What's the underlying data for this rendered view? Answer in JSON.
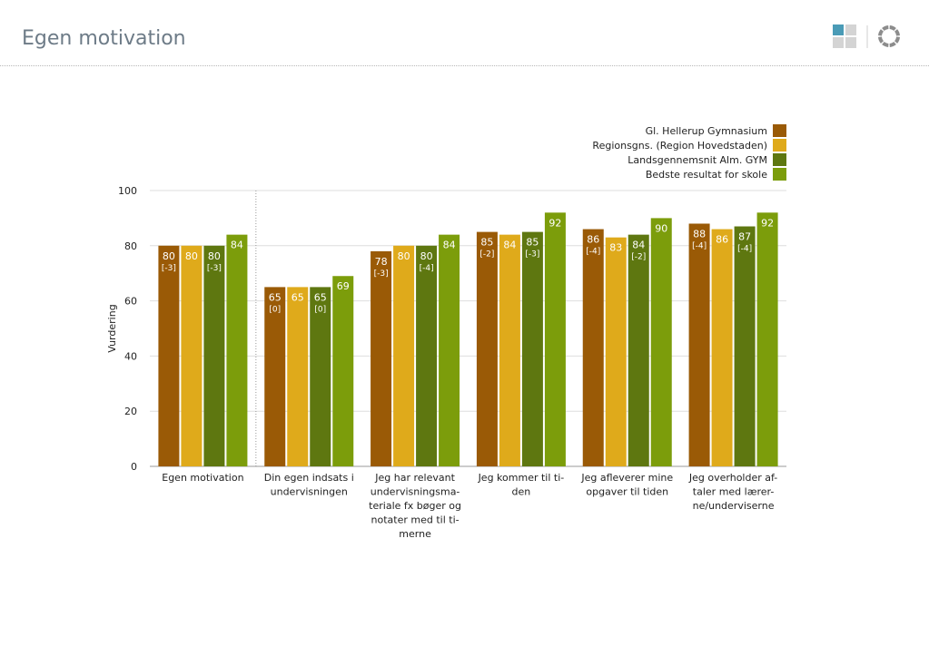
{
  "header": {
    "title": "Egen motivation"
  },
  "logo": {
    "icon_left": "grid-squares-icon",
    "icon_right": "ring-segments-icon",
    "colors": {
      "square_accent": "#4a9bb6",
      "square_grey": "#d4d4d4",
      "ring": "#8c8c8c"
    }
  },
  "chart_data": {
    "type": "bar",
    "ylabel": "Vurdering",
    "ylim": [
      0,
      100
    ],
    "yticks": [
      0,
      20,
      40,
      60,
      80,
      100
    ],
    "grid": true,
    "legend_position": "top-right",
    "categories": [
      "Egen motivation",
      "Din egen indsats i undervisningen",
      "Jeg har relevant undervisningsmateriale fx bøger og notater med til timerne",
      "Jeg kommer til tiden",
      "Jeg afleverer mine opgaver til tiden",
      "Jeg overholder aftaler med lærerne/underviserne"
    ],
    "category_lines": [
      [
        "Egen motivation"
      ],
      [
        "Din egen indsats i",
        "undervisningen"
      ],
      [
        "Jeg har relevant",
        "undervisningsma-",
        "teriale fx bøger og",
        "notater med til ti-",
        "merne"
      ],
      [
        "Jeg kommer til ti-",
        "den"
      ],
      [
        "Jeg afleverer mine",
        "opgaver til tiden"
      ],
      [
        "Jeg overholder af-",
        "taler med lærer-",
        "ne/underviserne"
      ]
    ],
    "series": [
      {
        "name": "Gl. Hellerup Gymnasium",
        "color": "#9a5a06",
        "values": [
          80,
          65,
          78,
          85,
          86,
          88
        ],
        "diffs": [
          "[-3]",
          "[0]",
          "[-3]",
          "[-2]",
          "[-4]",
          "[-4]"
        ]
      },
      {
        "name": "Regionsgns. (Region Hovedstaden)",
        "color": "#dfaa1b",
        "values": [
          80,
          65,
          80,
          84,
          83,
          86
        ],
        "diffs": [
          "",
          "",
          "",
          "",
          "",
          ""
        ]
      },
      {
        "name": "Landsgennemsnit Alm. GYM",
        "color": "#5e7710",
        "values": [
          80,
          65,
          80,
          85,
          84,
          87
        ],
        "diffs": [
          "[-3]",
          "[0]",
          "[-4]",
          "[-3]",
          "[-2]",
          "[-4]"
        ]
      },
      {
        "name": "Bedste resultat for skole",
        "color": "#7c9d0b",
        "values": [
          84,
          69,
          84,
          92,
          90,
          92
        ],
        "diffs": [
          "",
          "",
          "",
          "",
          "",
          ""
        ]
      }
    ]
  }
}
